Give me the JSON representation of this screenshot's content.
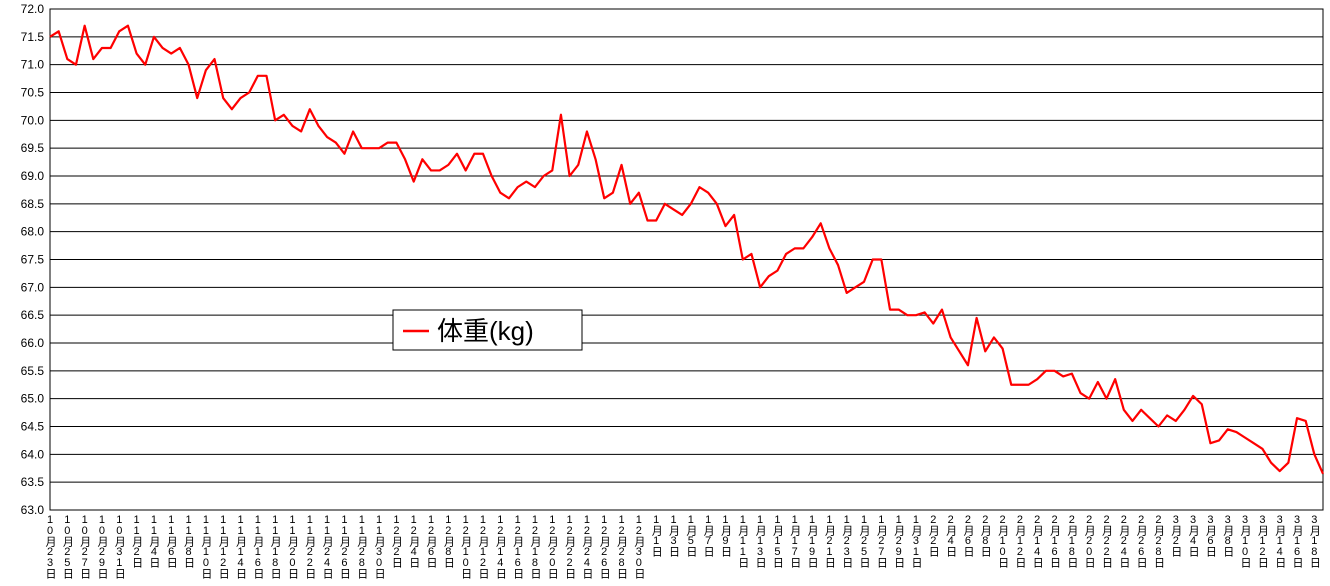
{
  "chart_data": {
    "type": "line",
    "categories": [
      "10月23日",
      null,
      "10月25日",
      null,
      "10月27日",
      null,
      "10月29日",
      null,
      "10月31日",
      null,
      "11月2日",
      null,
      "11月4日",
      null,
      "11月6日",
      null,
      "11月8日",
      null,
      "11月10日",
      null,
      "11月12日",
      null,
      "11月14日",
      null,
      "11月16日",
      null,
      "11月18日",
      null,
      "11月20日",
      null,
      "11月22日",
      null,
      "11月24日",
      null,
      "11月26日",
      null,
      "11月28日",
      null,
      "11月30日",
      null,
      "12月2日",
      null,
      "12月4日",
      null,
      "12月6日",
      null,
      "12月8日",
      null,
      "12月10日",
      null,
      "12月12日",
      null,
      "12月14日",
      null,
      "12月16日",
      null,
      "12月18日",
      null,
      "12月20日",
      null,
      "12月22日",
      null,
      "12月24日",
      null,
      "12月26日",
      null,
      "12月28日",
      null,
      "12月30日",
      null,
      "1月1日",
      null,
      "1月3日",
      null,
      "1月5日",
      null,
      "1月7日",
      null,
      "1月9日",
      null,
      "1月11日",
      null,
      "1月13日",
      null,
      "1月15日",
      null,
      "1月17日",
      null,
      "1月19日",
      null,
      "1月21日",
      null,
      "1月23日",
      null,
      "1月25日",
      null,
      "1月27日",
      null,
      "1月29日",
      null,
      "1月31日",
      null,
      "2月2日",
      null,
      "2月4日",
      null,
      "2月6日",
      null,
      "2月8日",
      null,
      "2月10日",
      null,
      "2月12日",
      null,
      "2月14日",
      null,
      "2月16日",
      null,
      "2月18日",
      null,
      "2月20日",
      null,
      "2月22日",
      null,
      "2月24日",
      null,
      "2月26日",
      null,
      "2月28日",
      null,
      "3月2日",
      null,
      "3月4日",
      null,
      "3月6日",
      null,
      "3月8日",
      null,
      "3月10日",
      null,
      "3月12日",
      null,
      "3月14日",
      null,
      "3月16日",
      null,
      "3月18日",
      null
    ],
    "series": [
      {
        "name": "体重(kg)",
        "color": "#ff0000",
        "values": [
          71.5,
          71.6,
          71.1,
          71.0,
          71.7,
          71.1,
          71.3,
          71.3,
          71.6,
          71.7,
          71.2,
          71.0,
          71.5,
          71.3,
          71.2,
          71.3,
          71.0,
          70.4,
          70.9,
          71.1,
          70.4,
          70.2,
          70.4,
          70.5,
          70.8,
          70.8,
          70.0,
          70.1,
          69.9,
          69.8,
          70.2,
          69.9,
          69.7,
          69.6,
          69.4,
          69.8,
          69.5,
          69.5,
          69.5,
          69.6,
          69.6,
          69.3,
          68.9,
          69.3,
          69.1,
          69.1,
          69.2,
          69.4,
          69.1,
          69.4,
          69.4,
          69.0,
          68.7,
          68.6,
          68.8,
          68.9,
          68.8,
          69.0,
          69.1,
          70.1,
          69.0,
          69.2,
          69.8,
          69.3,
          68.6,
          68.7,
          69.2,
          68.5,
          68.7,
          68.2,
          68.2,
          68.5,
          68.4,
          68.3,
          68.5,
          68.8,
          68.7,
          68.5,
          68.1,
          68.3,
          67.5,
          67.6,
          67.0,
          67.2,
          67.3,
          67.6,
          67.7,
          67.7,
          67.9,
          68.15,
          67.7,
          67.4,
          66.9,
          67.0,
          67.1,
          67.5,
          67.5,
          66.6,
          66.6,
          66.5,
          66.5,
          66.55,
          66.35,
          66.6,
          66.1,
          65.85,
          65.6,
          66.45,
          65.85,
          66.1,
          65.9,
          65.25,
          65.25,
          65.25,
          65.35,
          65.5,
          65.5,
          65.4,
          65.45,
          65.1,
          65.0,
          65.3,
          65.0,
          65.35,
          64.8,
          64.6,
          64.8,
          64.65,
          64.5,
          64.7,
          64.6,
          64.8,
          65.05,
          64.9,
          64.2,
          64.25,
          64.45,
          64.4,
          64.3,
          64.2,
          64.1,
          63.85,
          63.7,
          63.85,
          64.65,
          64.6,
          64.0,
          63.65
        ]
      }
    ],
    "ylim": [
      63,
      72
    ],
    "yticks": [
      {
        "value": 63,
        "label": "63.0"
      },
      {
        "value": 63.5,
        "label": "63.5"
      },
      {
        "value": 64,
        "label": "64.0"
      },
      {
        "value": 64.5,
        "label": "64.5"
      },
      {
        "value": 65,
        "label": "65.0"
      },
      {
        "value": 65.5,
        "label": "65.5"
      },
      {
        "value": 66,
        "label": "66.0"
      },
      {
        "value": 66.5,
        "label": "66.5"
      },
      {
        "value": 67,
        "label": "67.0"
      },
      {
        "value": 67.5,
        "label": "67.5"
      },
      {
        "value": 68,
        "label": "68.0"
      },
      {
        "value": 68.5,
        "label": "68.5"
      },
      {
        "value": 69,
        "label": "69.0"
      },
      {
        "value": 69.5,
        "label": "69.5"
      },
      {
        "value": 70,
        "label": "70.0"
      },
      {
        "value": 70.5,
        "label": "70.5"
      },
      {
        "value": 71,
        "label": "71.0"
      },
      {
        "value": 71.5,
        "label": "71.5"
      },
      {
        "value": 72,
        "label": "72.0"
      }
    ],
    "grid": true,
    "legend": "center"
  }
}
